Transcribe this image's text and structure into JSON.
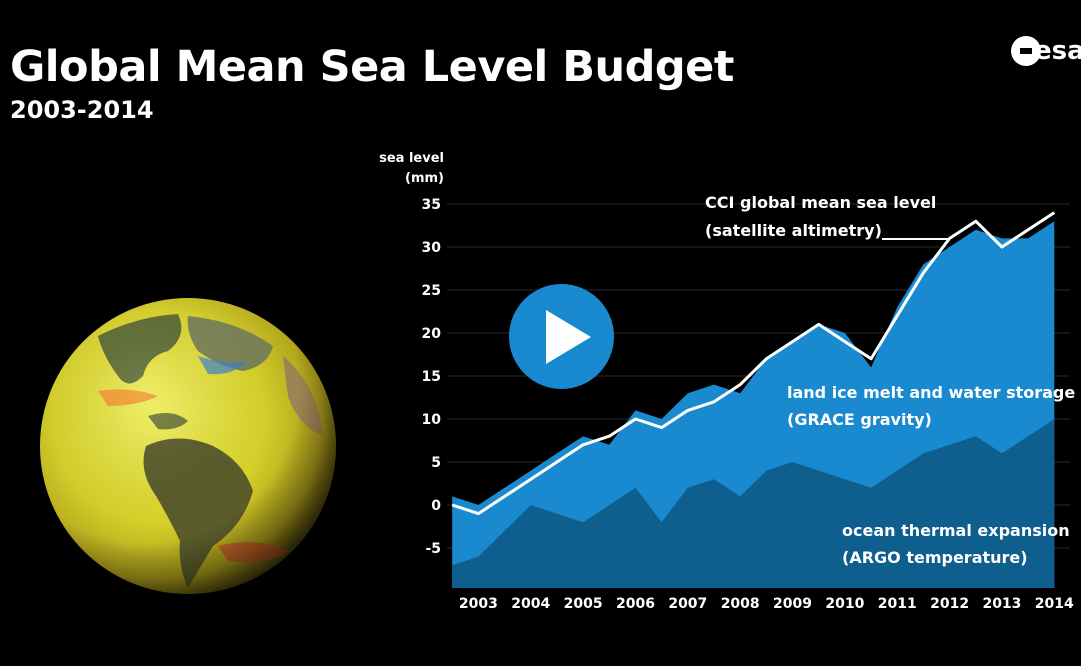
{
  "header": {
    "title": "Global Mean Sea Level Budget",
    "subtitle": "2003-2014",
    "logo_text": "esa"
  },
  "media": {
    "play_icon": "play-icon",
    "globe_icon": "globe-icon"
  },
  "colors": {
    "background": "#000000",
    "grace_area": "#1a8ad0",
    "argo_area": "#0e5e8e",
    "gmsl_line": "#ffffff",
    "grid": "#2a2a2a"
  },
  "chart_data": {
    "type": "area",
    "title": "Global Mean Sea Level Budget",
    "subtitle": "2003-2014",
    "ylabel_line1": "sea level",
    "ylabel_line2": "(mm)",
    "xlabel": "",
    "ylim": [
      -10,
      35
    ],
    "xlim": [
      2002.9,
      2014.8
    ],
    "yticks": [
      35,
      30,
      25,
      20,
      15,
      10,
      5,
      0,
      -5
    ],
    "ytick_labels": [
      "35",
      "30",
      "25",
      "20",
      "15",
      "10",
      "5",
      "0",
      "-5"
    ],
    "xtick_labels": [
      "2003",
      "2004",
      "2005",
      "2006",
      "2007",
      "2008",
      "2009",
      "2010",
      "2011",
      "2012",
      "2013",
      "2014"
    ],
    "grid": true,
    "annotations": {
      "gmsl_line1": "CCI global mean sea level",
      "gmsl_line2": "(satellite altimetry)",
      "grace_line1": "land ice melt and water storage",
      "grace_line2": "(GRACE gravity)",
      "argo_line1": "ocean thermal expansion",
      "argo_line2": "(ARGO temperature)"
    },
    "x": [
      2003.0,
      2003.5,
      2004.0,
      2004.5,
      2005.0,
      2005.5,
      2006.0,
      2006.5,
      2007.0,
      2007.5,
      2008.0,
      2008.5,
      2009.0,
      2009.5,
      2010.0,
      2010.5,
      2011.0,
      2011.5,
      2012.0,
      2012.5,
      2013.0,
      2013.5,
      2014.0,
      2014.5
    ],
    "series": [
      {
        "name": "CCI global mean sea level (satellite altimetry)",
        "style": "line",
        "values": [
          0,
          -1,
          1,
          3,
          5,
          7,
          8,
          10,
          9,
          11,
          12,
          14,
          17,
          19,
          21,
          19,
          17,
          22,
          27,
          31,
          33,
          30,
          32,
          34
        ]
      },
      {
        "name": "land ice melt and water storage (GRACE gravity)",
        "style": "area",
        "values": [
          1,
          0,
          2,
          4,
          6,
          8,
          7,
          11,
          10,
          13,
          14,
          13,
          17,
          19,
          21,
          20,
          16,
          23,
          28,
          30,
          32,
          31,
          31,
          33
        ]
      },
      {
        "name": "ocean thermal expansion (ARGO temperature)",
        "style": "area",
        "values": [
          -7,
          -6,
          -3,
          0,
          -1,
          -2,
          0,
          2,
          -2,
          2,
          3,
          1,
          4,
          5,
          4,
          3,
          2,
          4,
          6,
          7,
          8,
          6,
          8,
          10
        ]
      }
    ]
  }
}
